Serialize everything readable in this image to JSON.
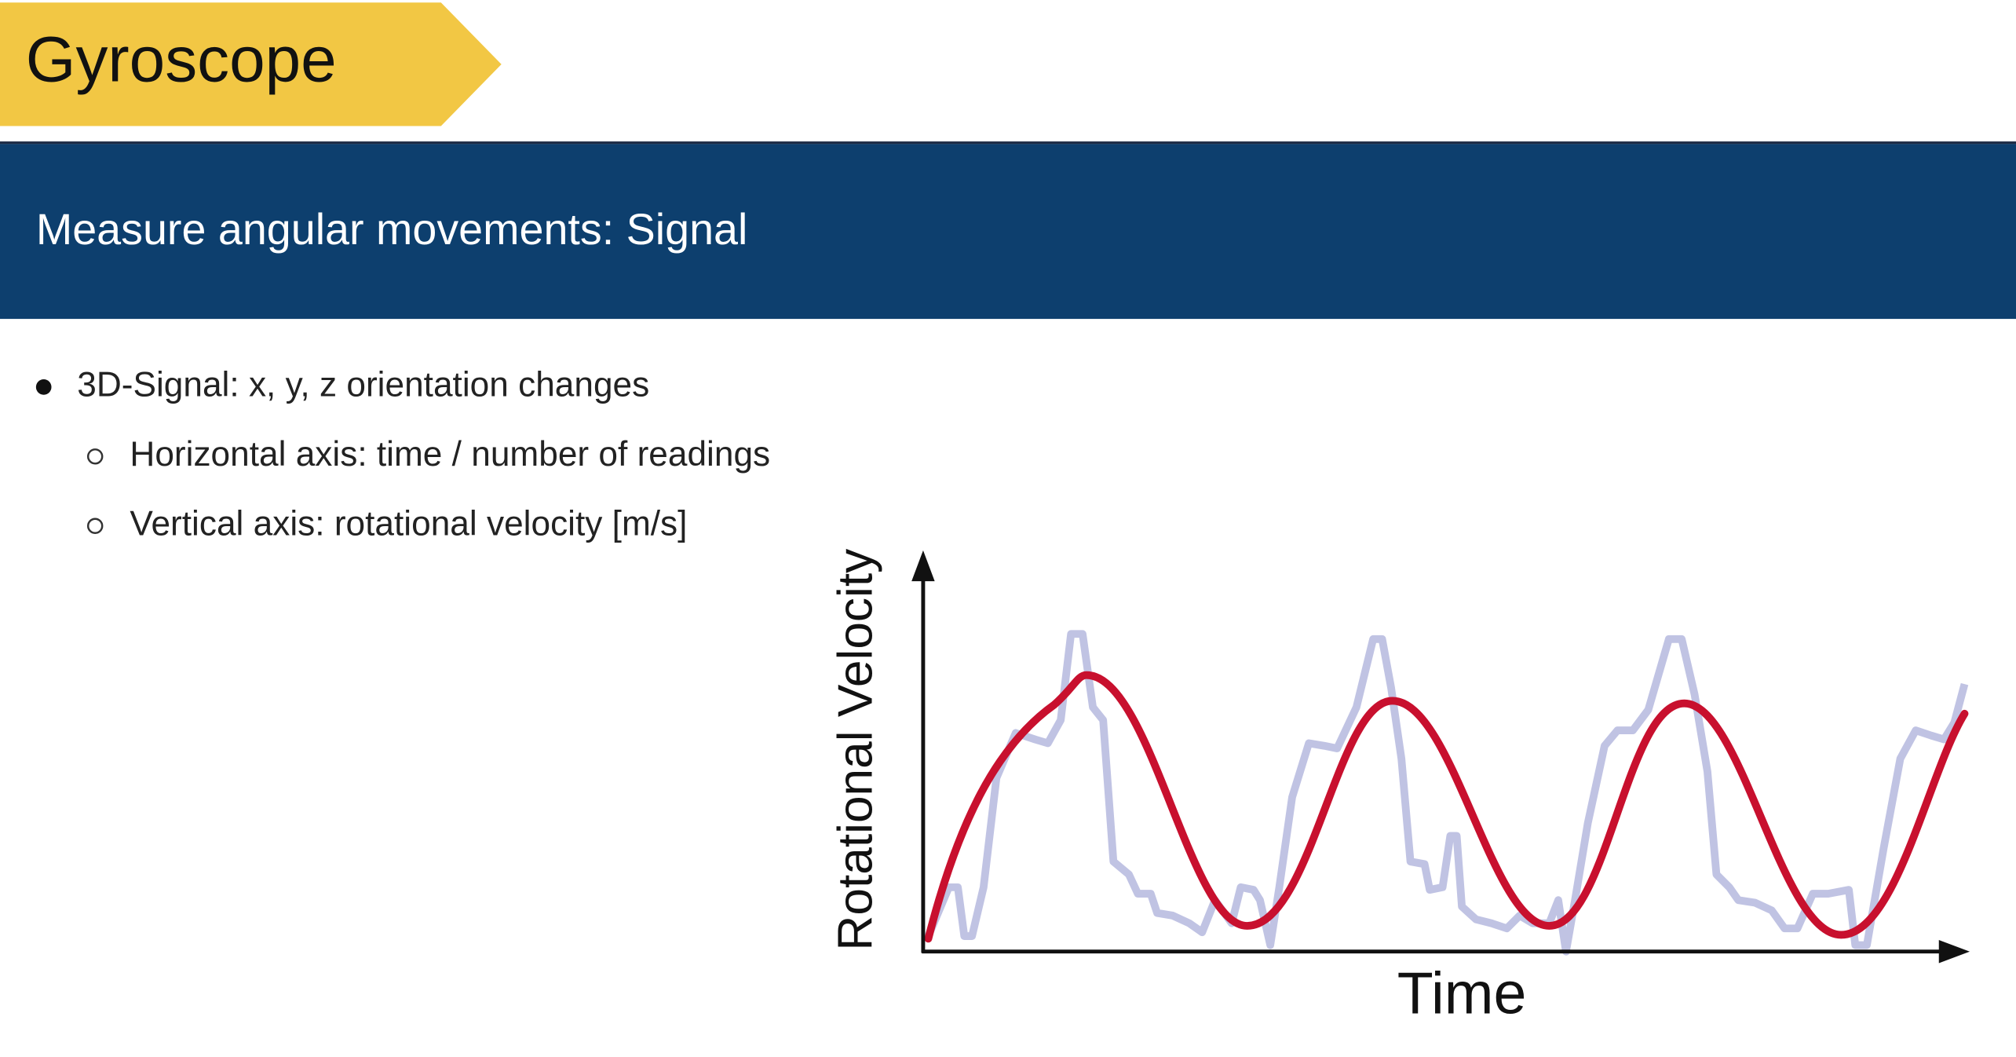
{
  "header": {
    "title": "Gyroscope"
  },
  "banner": {
    "subtitle": "Measure angular movements: Signal"
  },
  "bullets": [
    {
      "text": "3D-Signal: x, y, z orientation changes",
      "items": [
        "Horizontal axis: time / number of readings",
        "Vertical axis: rotational velocity [m/s]"
      ]
    }
  ],
  "figure": {
    "y_label": "Rotational Velocity",
    "x_label": "Time"
  }
}
